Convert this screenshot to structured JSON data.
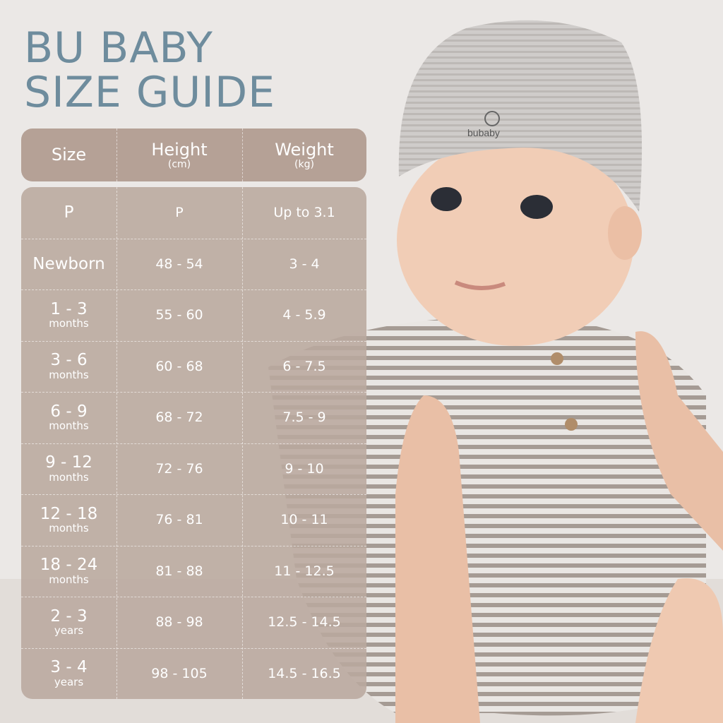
{
  "title": {
    "line1": "BU BABY",
    "line2": "SIZE GUIDE"
  },
  "colors": {
    "title": "#6e8c9d",
    "header_bg": "#b5a196",
    "body_bg": "#bba89e",
    "text": "#ffffff"
  },
  "photo": {
    "logo_text": "bubaby"
  },
  "header": {
    "size": "Size",
    "height": "Height",
    "height_unit": "(cm)",
    "weight": "Weight",
    "weight_unit": "(kg)"
  },
  "rows": [
    {
      "size": "P",
      "unit": "",
      "height": "P",
      "weight": "Up to 3.1"
    },
    {
      "size": "Newborn",
      "unit": "",
      "height": "48 - 54",
      "weight": "3 - 4"
    },
    {
      "size": "1 - 3",
      "unit": "months",
      "height": "55 - 60",
      "weight": "4 - 5.9"
    },
    {
      "size": "3 - 6",
      "unit": "months",
      "height": "60 - 68",
      "weight": "6 - 7.5"
    },
    {
      "size": "6 - 9",
      "unit": "months",
      "height": "68 - 72",
      "weight": "7.5 - 9"
    },
    {
      "size": "9 - 12",
      "unit": "months",
      "height": "72 - 76",
      "weight": "9 - 10"
    },
    {
      "size": "12 - 18",
      "unit": "months",
      "height": "76 - 81",
      "weight": "10 - 11"
    },
    {
      "size": "18 - 24",
      "unit": "months",
      "height": "81 - 88",
      "weight": "11 - 12.5"
    },
    {
      "size": "2 - 3",
      "unit": "years",
      "height": "88 - 98",
      "weight": "12.5 - 14.5"
    },
    {
      "size": "3 - 4",
      "unit": "years",
      "height": "98 - 105",
      "weight": "14.5 - 16.5"
    }
  ]
}
